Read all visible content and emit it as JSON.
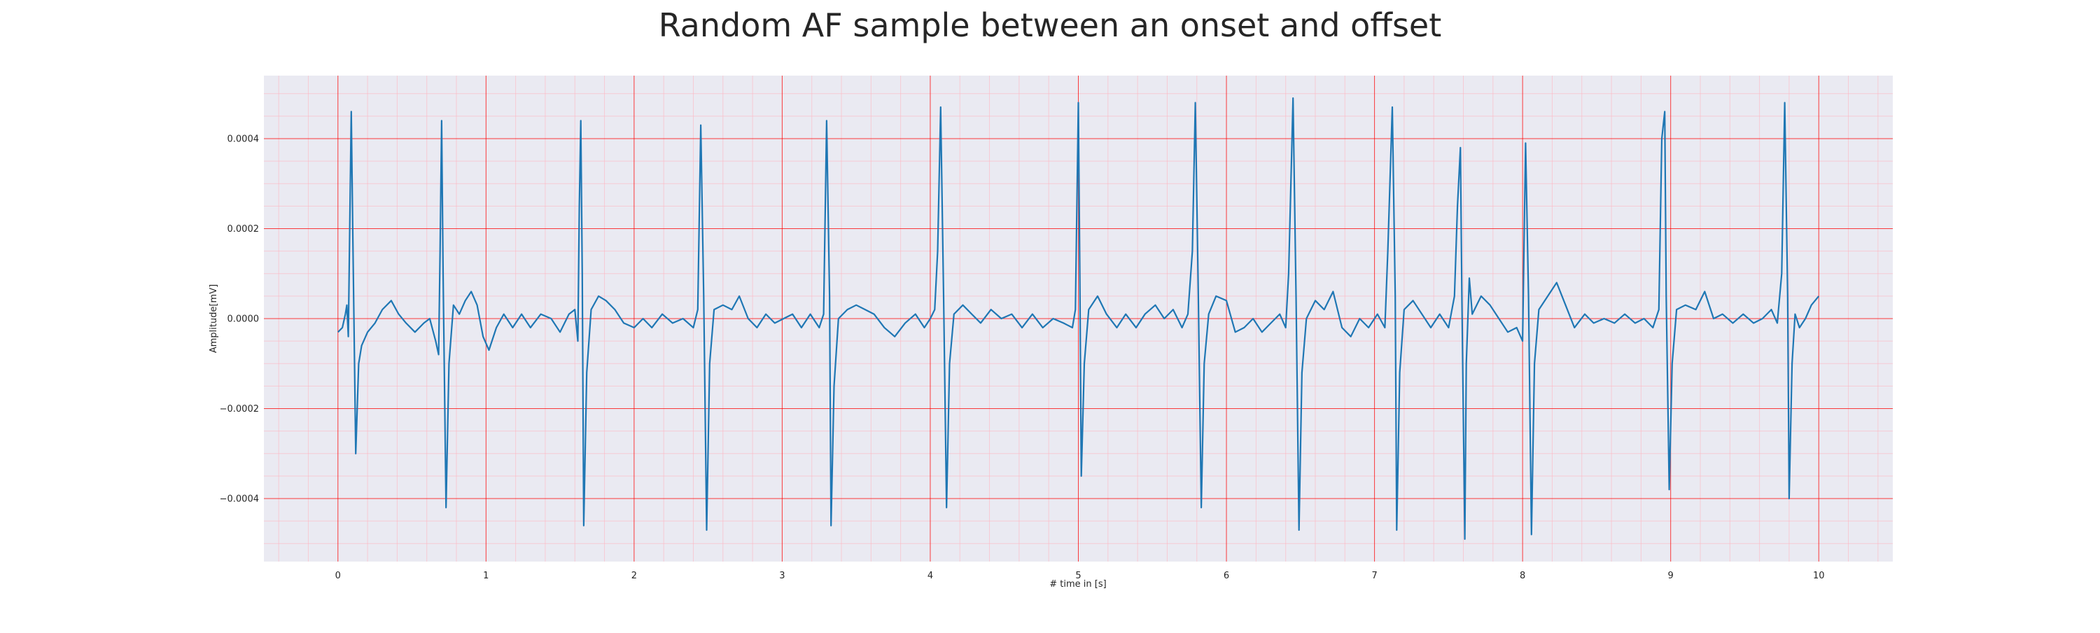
{
  "chart_data": {
    "type": "line",
    "title": "Random AF sample between an onset and offset",
    "xlabel": "# time in [s]",
    "ylabel": "Amplitude[mV]",
    "xlim": [
      -0.5,
      10.5
    ],
    "ylim": [
      -0.00054,
      0.00054
    ],
    "x_ticks": [
      0,
      1,
      2,
      3,
      4,
      5,
      6,
      7,
      8,
      9,
      10
    ],
    "x_tick_labels": [
      "0",
      "1",
      "2",
      "3",
      "4",
      "5",
      "6",
      "7",
      "8",
      "9",
      "10"
    ],
    "y_ticks": [
      0.0004,
      0.0002,
      0.0,
      -0.0002,
      -0.0004
    ],
    "y_tick_labels": [
      "0.0004",
      "0.0002",
      "0.0000",
      "−0.0002",
      "−0.0004"
    ],
    "grid": true,
    "legend": "none",
    "colors": {
      "line": "#1f77b4",
      "plot_background": "#eaeaf2",
      "major_grid": "#ff0000",
      "minor_grid": "#ffb6c1"
    },
    "series": [
      {
        "points": [
          [
            0.0,
            -3e-05
          ],
          [
            0.03,
            -2e-05
          ],
          [
            0.05,
            1e-05
          ],
          [
            0.06,
            3e-05
          ],
          [
            0.07,
            -4e-05
          ],
          [
            0.09,
            0.00046
          ],
          [
            0.1,
            0.0002
          ],
          [
            0.12,
            -0.0003
          ],
          [
            0.14,
            -0.0001
          ],
          [
            0.16,
            -6e-05
          ],
          [
            0.2,
            -3e-05
          ],
          [
            0.25,
            -1e-05
          ],
          [
            0.3,
            2e-05
          ],
          [
            0.36,
            4e-05
          ],
          [
            0.41,
            1e-05
          ],
          [
            0.46,
            -1e-05
          ],
          [
            0.52,
            -3e-05
          ],
          [
            0.58,
            -1e-05
          ],
          [
            0.62,
            0.0
          ],
          [
            0.66,
            -5e-05
          ],
          [
            0.68,
            -8e-05
          ],
          [
            0.69,
            0.00015
          ],
          [
            0.7,
            0.00044
          ],
          [
            0.71,
            0.0001
          ],
          [
            0.73,
            -0.00042
          ],
          [
            0.75,
            -0.0001
          ],
          [
            0.78,
            3e-05
          ],
          [
            0.82,
            1e-05
          ],
          [
            0.86,
            4e-05
          ],
          [
            0.9,
            6e-05
          ],
          [
            0.94,
            3e-05
          ],
          [
            0.98,
            -4e-05
          ],
          [
            1.02,
            -7e-05
          ],
          [
            1.07,
            -2e-05
          ],
          [
            1.12,
            1e-05
          ],
          [
            1.18,
            -2e-05
          ],
          [
            1.24,
            1e-05
          ],
          [
            1.3,
            -2e-05
          ],
          [
            1.37,
            1e-05
          ],
          [
            1.44,
            0.0
          ],
          [
            1.5,
            -3e-05
          ],
          [
            1.56,
            1e-05
          ],
          [
            1.6,
            2e-05
          ],
          [
            1.62,
            -5e-05
          ],
          [
            1.63,
            0.00025
          ],
          [
            1.64,
            0.00044
          ],
          [
            1.65,
            0.0001
          ],
          [
            1.66,
            -0.00046
          ],
          [
            1.68,
            -0.00012
          ],
          [
            1.71,
            2e-05
          ],
          [
            1.76,
            5e-05
          ],
          [
            1.81,
            4e-05
          ],
          [
            1.87,
            2e-05
          ],
          [
            1.93,
            -1e-05
          ],
          [
            2.0,
            -2e-05
          ],
          [
            2.06,
            0.0
          ],
          [
            2.12,
            -2e-05
          ],
          [
            2.19,
            1e-05
          ],
          [
            2.26,
            -1e-05
          ],
          [
            2.33,
            0.0
          ],
          [
            2.4,
            -2e-05
          ],
          [
            2.43,
            2e-05
          ],
          [
            2.45,
            0.00043
          ],
          [
            2.47,
            5e-05
          ],
          [
            2.49,
            -0.00047
          ],
          [
            2.51,
            -0.0001
          ],
          [
            2.54,
            2e-05
          ],
          [
            2.6,
            3e-05
          ],
          [
            2.66,
            2e-05
          ],
          [
            2.71,
            5e-05
          ],
          [
            2.77,
            0.0
          ],
          [
            2.83,
            -2e-05
          ],
          [
            2.89,
            1e-05
          ],
          [
            2.95,
            -1e-05
          ],
          [
            3.01,
            0.0
          ],
          [
            3.07,
            1e-05
          ],
          [
            3.13,
            -2e-05
          ],
          [
            3.19,
            1e-05
          ],
          [
            3.25,
            -2e-05
          ],
          [
            3.28,
            1e-05
          ],
          [
            3.3,
            0.00044
          ],
          [
            3.32,
            5e-05
          ],
          [
            3.33,
            -0.00046
          ],
          [
            3.35,
            -0.00015
          ],
          [
            3.38,
            0.0
          ],
          [
            3.44,
            2e-05
          ],
          [
            3.5,
            3e-05
          ],
          [
            3.56,
            2e-05
          ],
          [
            3.62,
            1e-05
          ],
          [
            3.69,
            -2e-05
          ],
          [
            3.76,
            -4e-05
          ],
          [
            3.83,
            -1e-05
          ],
          [
            3.9,
            1e-05
          ],
          [
            3.96,
            -2e-05
          ],
          [
            4.0,
            0.0
          ],
          [
            4.03,
            2e-05
          ],
          [
            4.05,
            0.00015
          ],
          [
            4.07,
            0.00047
          ],
          [
            4.09,
            5e-05
          ],
          [
            4.11,
            -0.00042
          ],
          [
            4.13,
            -0.0001
          ],
          [
            4.16,
            1e-05
          ],
          [
            4.22,
            3e-05
          ],
          [
            4.28,
            1e-05
          ],
          [
            4.34,
            -1e-05
          ],
          [
            4.41,
            2e-05
          ],
          [
            4.48,
            0.0
          ],
          [
            4.55,
            1e-05
          ],
          [
            4.62,
            -2e-05
          ],
          [
            4.69,
            1e-05
          ],
          [
            4.76,
            -2e-05
          ],
          [
            4.83,
            0.0
          ],
          [
            4.9,
            -1e-05
          ],
          [
            4.96,
            -2e-05
          ],
          [
            4.98,
            2e-05
          ],
          [
            5.0,
            0.00048
          ],
          [
            5.01,
            0.0001
          ],
          [
            5.02,
            -0.00035
          ],
          [
            5.04,
            -0.0001
          ],
          [
            5.07,
            2e-05
          ],
          [
            5.13,
            5e-05
          ],
          [
            5.19,
            1e-05
          ],
          [
            5.26,
            -2e-05
          ],
          [
            5.32,
            1e-05
          ],
          [
            5.39,
            -2e-05
          ],
          [
            5.45,
            1e-05
          ],
          [
            5.52,
            3e-05
          ],
          [
            5.58,
            0.0
          ],
          [
            5.64,
            2e-05
          ],
          [
            5.7,
            -2e-05
          ],
          [
            5.74,
            1e-05
          ],
          [
            5.77,
            0.00015
          ],
          [
            5.79,
            0.00048
          ],
          [
            5.81,
            5e-05
          ],
          [
            5.83,
            -0.00042
          ],
          [
            5.85,
            -0.0001
          ],
          [
            5.88,
            1e-05
          ],
          [
            5.93,
            5e-05
          ],
          [
            6.0,
            4e-05
          ],
          [
            6.06,
            -3e-05
          ],
          [
            6.12,
            -2e-05
          ],
          [
            6.18,
            0.0
          ],
          [
            6.24,
            -3e-05
          ],
          [
            6.3,
            -1e-05
          ],
          [
            6.36,
            1e-05
          ],
          [
            6.4,
            -2e-05
          ],
          [
            6.42,
            0.0001
          ],
          [
            6.45,
            0.00049
          ],
          [
            6.47,
            5e-05
          ],
          [
            6.49,
            -0.00047
          ],
          [
            6.51,
            -0.00012
          ],
          [
            6.54,
            0.0
          ],
          [
            6.6,
            4e-05
          ],
          [
            6.66,
            2e-05
          ],
          [
            6.72,
            6e-05
          ],
          [
            6.78,
            -2e-05
          ],
          [
            6.84,
            -4e-05
          ],
          [
            6.9,
            0.0
          ],
          [
            6.96,
            -2e-05
          ],
          [
            7.02,
            1e-05
          ],
          [
            7.07,
            -2e-05
          ],
          [
            7.09,
            0.00015
          ],
          [
            7.12,
            0.00047
          ],
          [
            7.14,
            5e-05
          ],
          [
            7.15,
            -0.00047
          ],
          [
            7.17,
            -0.00012
          ],
          [
            7.2,
            2e-05
          ],
          [
            7.26,
            4e-05
          ],
          [
            7.32,
            1e-05
          ],
          [
            7.38,
            -2e-05
          ],
          [
            7.44,
            1e-05
          ],
          [
            7.5,
            -2e-05
          ],
          [
            7.54,
            5e-05
          ],
          [
            7.56,
            0.00025
          ],
          [
            7.58,
            0.00038
          ],
          [
            7.59,
            5e-05
          ],
          [
            7.61,
            -0.00049
          ],
          [
            7.62,
            -0.0001
          ],
          [
            7.64,
            9e-05
          ],
          [
            7.66,
            1e-05
          ],
          [
            7.72,
            5e-05
          ],
          [
            7.78,
            3e-05
          ],
          [
            7.84,
            0.0
          ],
          [
            7.9,
            -3e-05
          ],
          [
            7.96,
            -2e-05
          ],
          [
            8.0,
            -5e-05
          ],
          [
            8.02,
            0.00039
          ],
          [
            8.04,
            5e-05
          ],
          [
            8.06,
            -0.00048
          ],
          [
            8.08,
            -0.0001
          ],
          [
            8.11,
            2e-05
          ],
          [
            8.17,
            5e-05
          ],
          [
            8.23,
            8e-05
          ],
          [
            8.29,
            3e-05
          ],
          [
            8.35,
            -2e-05
          ],
          [
            8.42,
            1e-05
          ],
          [
            8.48,
            -1e-05
          ],
          [
            8.55,
            0.0
          ],
          [
            8.62,
            -1e-05
          ],
          [
            8.69,
            1e-05
          ],
          [
            8.76,
            -1e-05
          ],
          [
            8.82,
            0.0
          ],
          [
            8.88,
            -2e-05
          ],
          [
            8.92,
            2e-05
          ],
          [
            8.94,
            0.0004
          ],
          [
            8.96,
            0.00046
          ],
          [
            8.97,
            5e-05
          ],
          [
            8.99,
            -0.00038
          ],
          [
            9.01,
            -0.0001
          ],
          [
            9.04,
            2e-05
          ],
          [
            9.1,
            3e-05
          ],
          [
            9.17,
            2e-05
          ],
          [
            9.23,
            6e-05
          ],
          [
            9.29,
            0.0
          ],
          [
            9.35,
            1e-05
          ],
          [
            9.42,
            -1e-05
          ],
          [
            9.49,
            1e-05
          ],
          [
            9.56,
            -1e-05
          ],
          [
            9.62,
            0.0
          ],
          [
            9.68,
            2e-05
          ],
          [
            9.72,
            -1e-05
          ],
          [
            9.75,
            0.0001
          ],
          [
            9.77,
            0.00048
          ],
          [
            9.79,
            5e-05
          ],
          [
            9.8,
            -0.0004
          ],
          [
            9.82,
            -0.0001
          ],
          [
            9.84,
            1e-05
          ],
          [
            9.87,
            -2e-05
          ],
          [
            9.91,
            0.0
          ],
          [
            9.95,
            3e-05
          ],
          [
            10.0,
            5e-05
          ]
        ]
      }
    ]
  }
}
